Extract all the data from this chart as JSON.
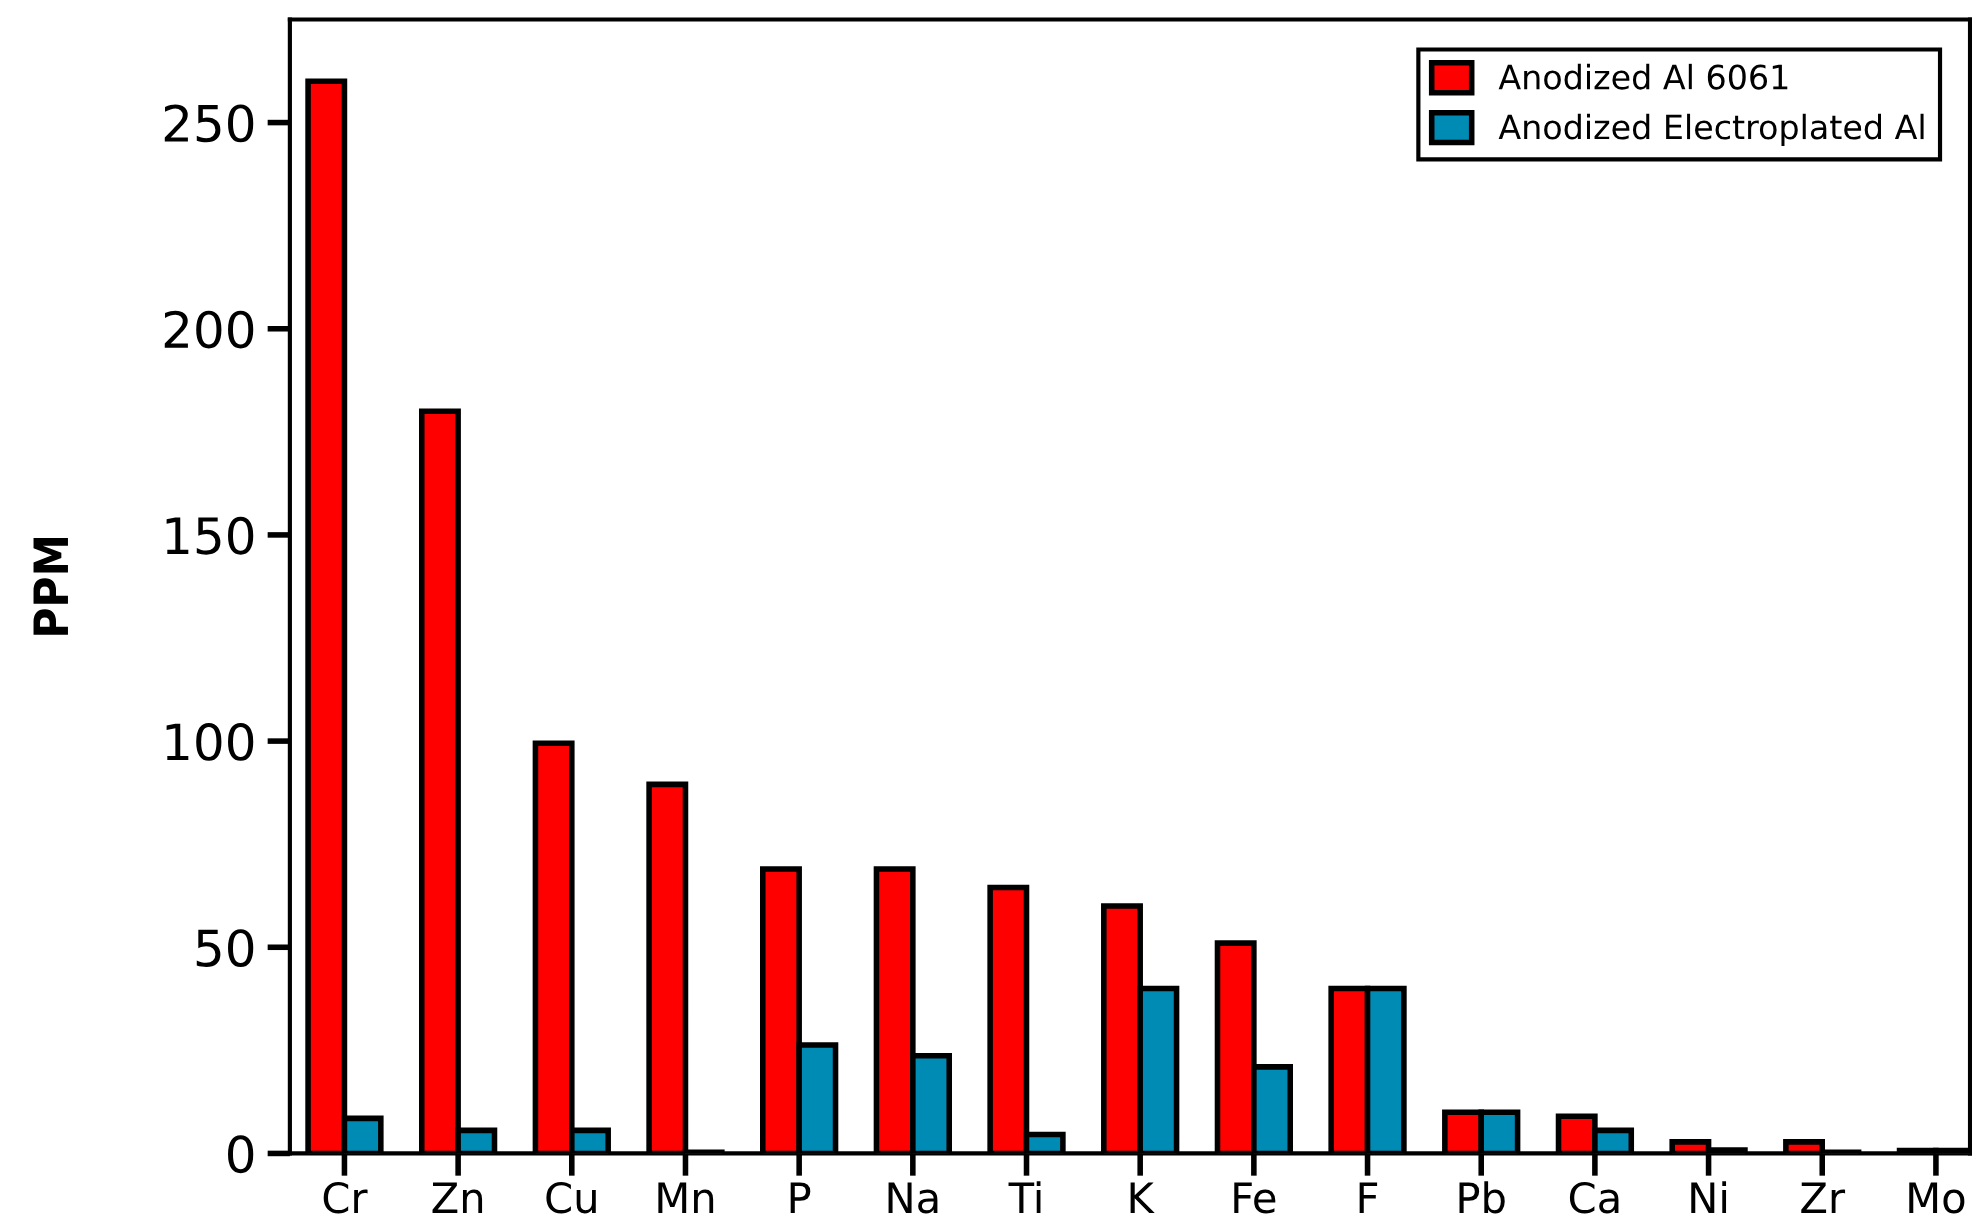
{
  "chart_data": {
    "type": "bar",
    "ylabel": "PPM",
    "categories": [
      "Cr",
      "Zn",
      "Cu",
      "Mn",
      "P",
      "Na",
      "Ti",
      "K",
      "Fe",
      "F",
      "Pb",
      "Ca",
      "Ni",
      "Zr",
      "Mo"
    ],
    "series": [
      {
        "name": "Anodized Al 6061",
        "color": "#ff0000",
        "values": [
          260,
          180,
          99.5,
          89.5,
          69,
          69,
          64.5,
          60,
          51,
          40,
          10,
          9,
          2.8,
          2.8,
          0.7
        ]
      },
      {
        "name": "Anodized Electroplated Al",
        "color": "#008bb5",
        "values": [
          8.5,
          5.6,
          5.6,
          0.3,
          26.3,
          23.7,
          4.6,
          40,
          21,
          40,
          10,
          5.6,
          0.8,
          0.3,
          0.7
        ]
      }
    ],
    "ylim": [
      0,
      275
    ],
    "yticks": [
      0,
      50,
      100,
      150,
      200,
      250
    ],
    "legend": "top right",
    "grid": false
  }
}
